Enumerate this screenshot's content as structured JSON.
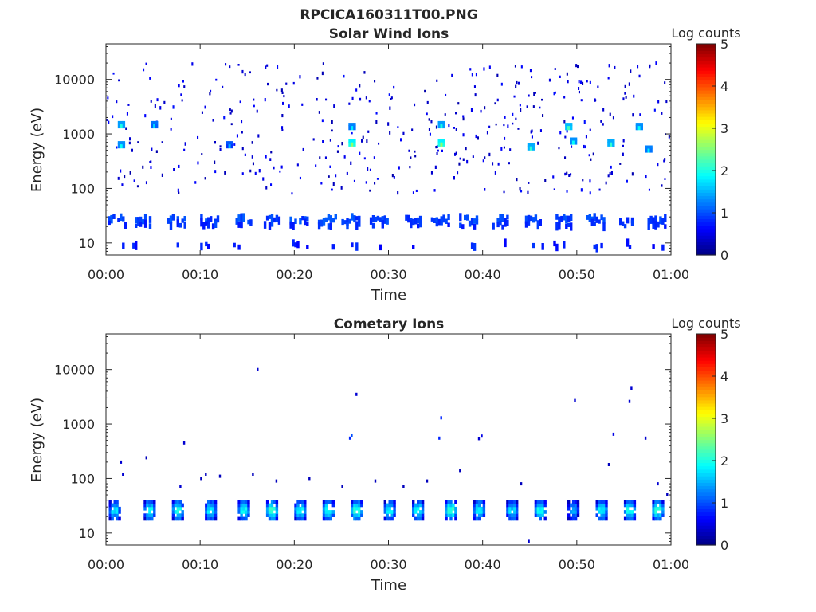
{
  "figure": {
    "title": "RPCICA160311T00.PNG"
  },
  "colorbar": {
    "label": "Log counts",
    "ticks": [
      "0",
      "1",
      "2",
      "3",
      "4",
      "5"
    ],
    "range": [
      0,
      5
    ],
    "colormap": "jet"
  },
  "chart_data": [
    {
      "type": "heatmap",
      "title": "Solar Wind Ions",
      "xlabel": "Time",
      "ylabel": "Energy (eV)",
      "x_ticks": [
        "00:00",
        "00:10",
        "00:20",
        "00:30",
        "00:40",
        "00:50",
        "01:00"
      ],
      "x_range_min": [
        0,
        60
      ],
      "y_ticks": [
        "10",
        "100",
        "1000",
        "10000"
      ],
      "y_tick_values": [
        10,
        100,
        1000,
        10000
      ],
      "ylim": [
        6,
        45000
      ],
      "y_scale": "log",
      "value_unit": "log counts",
      "sweep_minutes": [
        1.2,
        3.8,
        7.5,
        11,
        14.5,
        17.5,
        20.5,
        23.5,
        26,
        29,
        32.5,
        35.5,
        38.5,
        42,
        45.5,
        48.5,
        52,
        55.5,
        58.5
      ],
      "bands": [
        {
          "energy_ev": 27,
          "log_counts": 0.8,
          "presence": 0.8
        },
        {
          "energy_ev": 22,
          "log_counts": 0.7,
          "presence": 0.5
        },
        {
          "energy_ev": 9,
          "log_counts": 0.6,
          "presence": 0.25
        }
      ],
      "peaks": [
        {
          "minute": 1.5,
          "energy_ev": 1400,
          "log_counts": 2.0
        },
        {
          "minute": 1.5,
          "energy_ev": 600,
          "log_counts": 1.9
        },
        {
          "minute": 5,
          "energy_ev": 1400,
          "log_counts": 1.7
        },
        {
          "minute": 13,
          "energy_ev": 600,
          "log_counts": 1.5
        },
        {
          "minute": 26,
          "energy_ev": 650,
          "log_counts": 2.6
        },
        {
          "minute": 26,
          "energy_ev": 1300,
          "log_counts": 1.8
        },
        {
          "minute": 35.5,
          "energy_ev": 1400,
          "log_counts": 2.0
        },
        {
          "minute": 35.5,
          "energy_ev": 650,
          "log_counts": 2.6
        },
        {
          "minute": 45,
          "energy_ev": 550,
          "log_counts": 2.1
        },
        {
          "minute": 49,
          "energy_ev": 1300,
          "log_counts": 2.2
        },
        {
          "minute": 49.5,
          "energy_ev": 700,
          "log_counts": 1.9
        },
        {
          "minute": 53.5,
          "energy_ev": 650,
          "log_counts": 2.1
        },
        {
          "minute": 56.5,
          "energy_ev": 1300,
          "log_counts": 1.9
        },
        {
          "minute": 57.5,
          "energy_ev": 500,
          "log_counts": 1.8
        }
      ],
      "scatter_count": 420,
      "scatter_energy_range": [
        80,
        20000
      ]
    },
    {
      "type": "heatmap",
      "title": "Cometary Ions",
      "xlabel": "Time",
      "ylabel": "Energy (eV)",
      "x_ticks": [
        "00:00",
        "00:10",
        "00:20",
        "00:30",
        "00:40",
        "00:50",
        "01:00"
      ],
      "x_range_min": [
        0,
        60
      ],
      "y_ticks": [
        "10",
        "100",
        "1000",
        "10000"
      ],
      "y_tick_values": [
        10,
        100,
        1000,
        10000
      ],
      "ylim": [
        6,
        45000
      ],
      "y_scale": "log",
      "value_unit": "log counts",
      "block_energy_ev": [
        17,
        40
      ],
      "blocks": [
        {
          "minute": 0.8,
          "peak_log_counts": 1.8
        },
        {
          "minute": 4.5,
          "peak_log_counts": 2.0
        },
        {
          "minute": 7.5,
          "peak_log_counts": 2.1
        },
        {
          "minute": 11,
          "peak_log_counts": 1.9
        },
        {
          "minute": 14.5,
          "peak_log_counts": 2.0
        },
        {
          "minute": 17.5,
          "peak_log_counts": 2.3
        },
        {
          "minute": 20.5,
          "peak_log_counts": 2.0
        },
        {
          "minute": 23.5,
          "peak_log_counts": 2.1
        },
        {
          "minute": 26.5,
          "peak_log_counts": 2.2
        },
        {
          "minute": 30,
          "peak_log_counts": 1.9
        },
        {
          "minute": 33,
          "peak_log_counts": 2.0
        },
        {
          "minute": 36.5,
          "peak_log_counts": 2.3
        },
        {
          "minute": 39.5,
          "peak_log_counts": 2.0
        },
        {
          "minute": 43,
          "peak_log_counts": 1.8
        },
        {
          "minute": 46,
          "peak_log_counts": 2.1
        },
        {
          "minute": 49.5,
          "peak_log_counts": 1.5
        },
        {
          "minute": 52.5,
          "peak_log_counts": 2.0
        },
        {
          "minute": 55.5,
          "peak_log_counts": 2.1
        },
        {
          "minute": 58.5,
          "peak_log_counts": 2.2
        }
      ],
      "points": [
        {
          "minute": 1.5,
          "energy_ev": 200,
          "log_counts": 0.4
        },
        {
          "minute": 1.7,
          "energy_ev": 120,
          "log_counts": 0.4
        },
        {
          "minute": 4.2,
          "energy_ev": 240,
          "log_counts": 0.3
        },
        {
          "minute": 8.2,
          "energy_ev": 450,
          "log_counts": 0.4
        },
        {
          "minute": 7.8,
          "energy_ev": 70,
          "log_counts": 0.4
        },
        {
          "minute": 10,
          "energy_ev": 100,
          "log_counts": 0.3
        },
        {
          "minute": 10.5,
          "energy_ev": 120,
          "log_counts": 0.3
        },
        {
          "minute": 12,
          "energy_ev": 110,
          "log_counts": 0.3
        },
        {
          "minute": 15.5,
          "energy_ev": 120,
          "log_counts": 0.3
        },
        {
          "minute": 16,
          "energy_ev": 10000,
          "log_counts": 0.4
        },
        {
          "minute": 18,
          "energy_ev": 90,
          "log_counts": 0.3
        },
        {
          "minute": 21.5,
          "energy_ev": 100,
          "log_counts": 0.3
        },
        {
          "minute": 25,
          "energy_ev": 70,
          "log_counts": 0.3
        },
        {
          "minute": 26,
          "energy_ev": 620,
          "log_counts": 1.0
        },
        {
          "minute": 25.8,
          "energy_ev": 550,
          "log_counts": 0.8
        },
        {
          "minute": 26.5,
          "energy_ev": 3500,
          "log_counts": 0.4
        },
        {
          "minute": 28.5,
          "energy_ev": 90,
          "log_counts": 0.3
        },
        {
          "minute": 31.5,
          "energy_ev": 70,
          "log_counts": 0.3
        },
        {
          "minute": 34,
          "energy_ev": 90,
          "log_counts": 0.3
        },
        {
          "minute": 35.5,
          "energy_ev": 1300,
          "log_counts": 0.8
        },
        {
          "minute": 35.3,
          "energy_ev": 550,
          "log_counts": 0.8
        },
        {
          "minute": 37.5,
          "energy_ev": 140,
          "log_counts": 0.3
        },
        {
          "minute": 39.8,
          "energy_ev": 600,
          "log_counts": 0.5
        },
        {
          "minute": 39.5,
          "energy_ev": 540,
          "log_counts": 0.4
        },
        {
          "minute": 44,
          "energy_ev": 80,
          "log_counts": 0.3
        },
        {
          "minute": 44.8,
          "energy_ev": 7,
          "log_counts": 0.4
        },
        {
          "minute": 49.7,
          "energy_ev": 2700,
          "log_counts": 0.4
        },
        {
          "minute": 53.3,
          "energy_ev": 180,
          "log_counts": 0.3
        },
        {
          "minute": 53.8,
          "energy_ev": 650,
          "log_counts": 0.5
        },
        {
          "minute": 55.7,
          "energy_ev": 4500,
          "log_counts": 0.4
        },
        {
          "minute": 55.5,
          "energy_ev": 2600,
          "log_counts": 0.4
        },
        {
          "minute": 57.2,
          "energy_ev": 550,
          "log_counts": 0.4
        },
        {
          "minute": 58.5,
          "energy_ev": 80,
          "log_counts": 0.4
        },
        {
          "minute": 59.5,
          "energy_ev": 50,
          "log_counts": 0.3
        }
      ]
    }
  ]
}
